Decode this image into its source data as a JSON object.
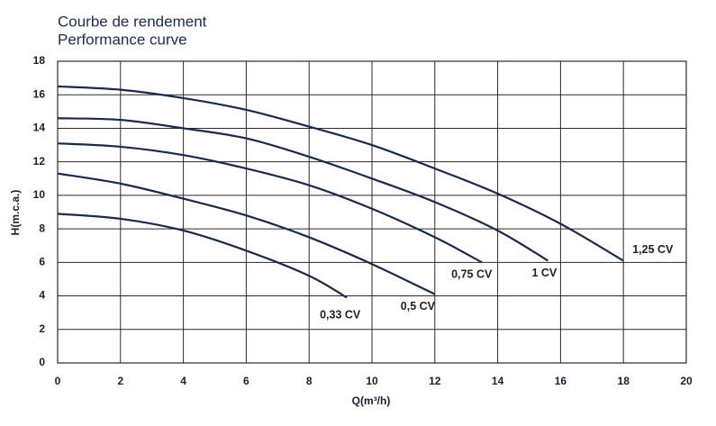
{
  "chart_data": {
    "type": "line",
    "title": "Courbe de rendement",
    "subtitle": "Performance curve",
    "x_label": "Q(m³/h)",
    "y_label": "H(m.c.a.)",
    "xlim": [
      0,
      20
    ],
    "xticks": [
      0,
      2,
      4,
      6,
      8,
      10,
      12,
      14,
      16,
      18,
      20
    ],
    "ylim": [
      0,
      18
    ],
    "yticks": [
      0,
      2,
      4,
      6,
      8,
      10,
      12,
      14,
      16,
      18
    ],
    "grid": true,
    "series": [
      {
        "name": "1,25 CV",
        "color": "#1c2a4a",
        "x": [
          0,
          2,
          4,
          6,
          8,
          10,
          12,
          14,
          16,
          18
        ],
        "values": [
          16.5,
          16.3,
          15.8,
          15.1,
          14.1,
          13.0,
          11.6,
          10.1,
          8.3,
          6.1
        ]
      },
      {
        "name": "1 CV",
        "color": "#1c2a4a",
        "x": [
          0,
          2,
          4,
          6,
          8,
          10,
          12,
          14,
          15.6
        ],
        "values": [
          14.6,
          14.5,
          14.0,
          13.4,
          12.3,
          11.0,
          9.6,
          7.9,
          6.1
        ]
      },
      {
        "name": "0,75 CV",
        "color": "#1c2a4a",
        "x": [
          0,
          2,
          4,
          6,
          8,
          10,
          12,
          13.5
        ],
        "values": [
          13.1,
          12.9,
          12.4,
          11.6,
          10.6,
          9.2,
          7.5,
          6.0
        ]
      },
      {
        "name": "0,5 CV",
        "color": "#1c2a4a",
        "x": [
          0,
          2,
          4,
          6,
          8,
          10,
          12
        ],
        "values": [
          11.3,
          10.7,
          9.8,
          8.8,
          7.5,
          5.9,
          4.1
        ]
      },
      {
        "name": "0,33 CV",
        "color": "#1c2a4a",
        "x": [
          0,
          2,
          4,
          6,
          8,
          9.2
        ],
        "values": [
          8.9,
          8.6,
          7.9,
          6.7,
          5.2,
          3.9
        ]
      }
    ]
  }
}
